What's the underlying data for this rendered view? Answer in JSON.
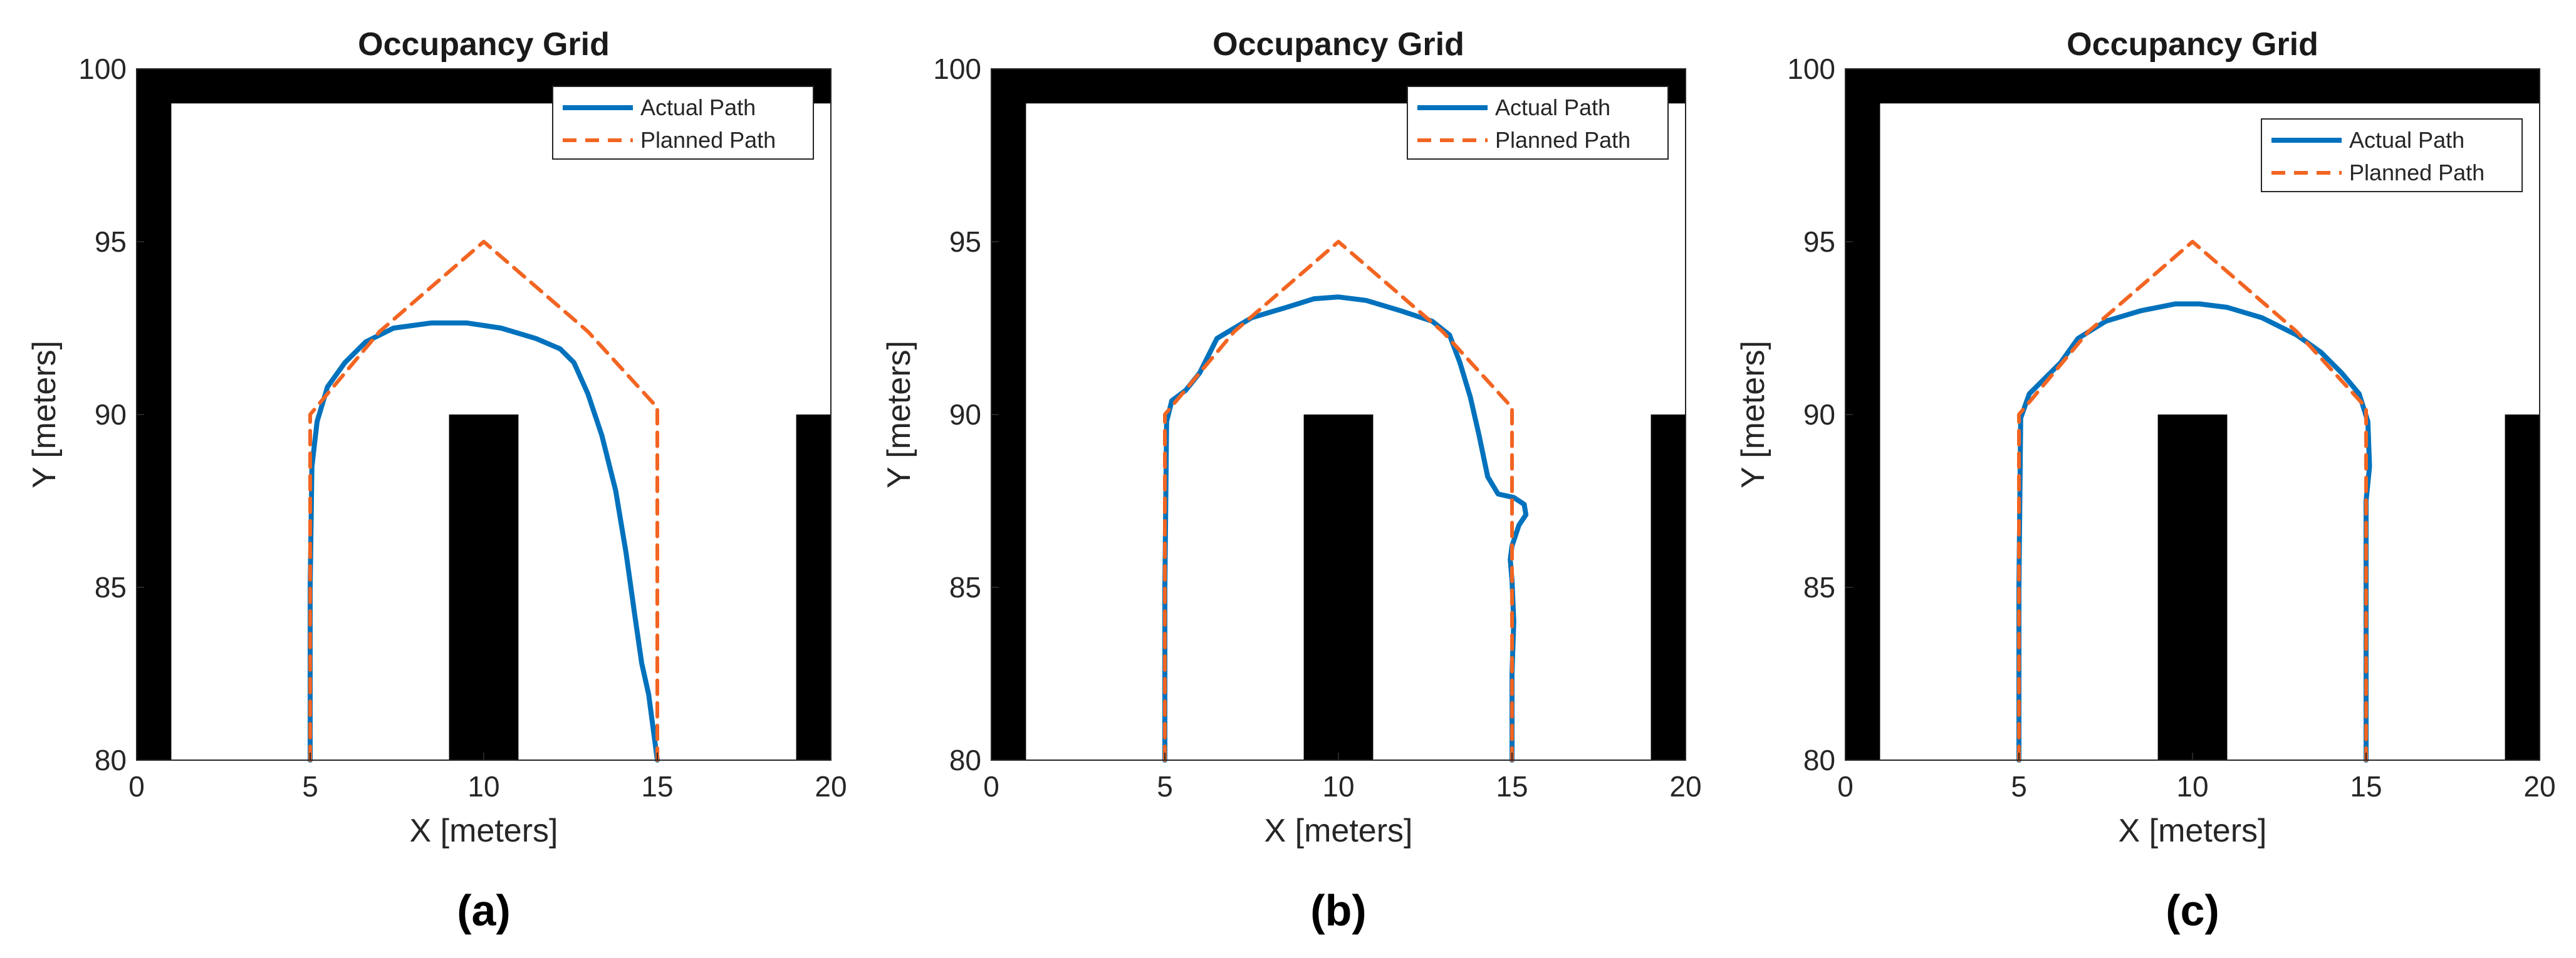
{
  "chart_data": [
    {
      "type": "line",
      "title": "Occupancy Grid",
      "xlabel": "X [meters]",
      "ylabel": "Y [meters]",
      "xlim": [
        0,
        20
      ],
      "ylim": [
        80,
        100
      ],
      "xticks": [
        "0",
        "5",
        "10",
        "15",
        "20"
      ],
      "yticks": [
        "80",
        "85",
        "90",
        "95",
        "100"
      ],
      "legend_position": "top-right",
      "caption": "(a)",
      "obstacles": [
        {
          "x0": 0,
          "x1": 20,
          "y0": 99,
          "y1": 100
        },
        {
          "x0": 0,
          "x1": 1,
          "y0": 80,
          "y1": 100
        },
        {
          "x0": 9,
          "x1": 11,
          "y0": 80,
          "y1": 90
        },
        {
          "x0": 19,
          "x1": 20,
          "y0": 80,
          "y1": 90
        }
      ],
      "series": [
        {
          "name": "Actual Path",
          "color": "#0072BD",
          "style": "solid",
          "x": [
            5,
            5,
            5.05,
            5.2,
            5.5,
            6,
            6.6,
            7.4,
            8.5,
            9.5,
            10.5,
            11.5,
            12.2,
            12.6,
            13.0,
            13.4,
            13.8,
            14.1,
            14.35,
            14.55,
            14.75,
            15.0
          ],
          "y": [
            80,
            85,
            88.5,
            89.8,
            90.8,
            91.5,
            92.1,
            92.5,
            92.65,
            92.65,
            92.5,
            92.2,
            91.9,
            91.5,
            90.6,
            89.4,
            87.8,
            86.0,
            84.2,
            82.8,
            81.9,
            80
          ]
        },
        {
          "name": "Planned Path",
          "color": "#F26522",
          "style": "dashed",
          "x": [
            5,
            5,
            7,
            10,
            13,
            15,
            15
          ],
          "y": [
            80,
            90,
            92.4,
            95,
            92.4,
            90.2,
            80
          ]
        }
      ]
    },
    {
      "type": "line",
      "title": "Occupancy Grid",
      "xlabel": "X [meters]",
      "ylabel": "Y [meters]",
      "xlim": [
        0,
        20
      ],
      "ylim": [
        80,
        100
      ],
      "xticks": [
        "0",
        "5",
        "10",
        "15",
        "20"
      ],
      "yticks": [
        "80",
        "85",
        "90",
        "95",
        "100"
      ],
      "legend_position": "top-right",
      "caption": "(b)",
      "obstacles": [
        {
          "x0": 0,
          "x1": 20,
          "y0": 99,
          "y1": 100
        },
        {
          "x0": 0,
          "x1": 1,
          "y0": 80,
          "y1": 100
        },
        {
          "x0": 9,
          "x1": 11,
          "y0": 80,
          "y1": 90
        },
        {
          "x0": 19,
          "x1": 20,
          "y0": 80,
          "y1": 90
        }
      ],
      "series": [
        {
          "name": "Actual Path",
          "color": "#0072BD",
          "style": "solid",
          "x": [
            5,
            5,
            5.05,
            5.2,
            5.6,
            6,
            6.5,
            7.5,
            8.5,
            9.3,
            10,
            10.8,
            11.8,
            12.7,
            13.2,
            13.5,
            13.8,
            14.05,
            14.3,
            14.6,
            15.05,
            15.35,
            15.4,
            15.2,
            15.0,
            14.95,
            15.0,
            15.05,
            15.0,
            15.0
          ],
          "y": [
            80,
            85,
            89.8,
            90.4,
            90.7,
            91.2,
            92.2,
            92.8,
            93.1,
            93.35,
            93.4,
            93.3,
            93.0,
            92.7,
            92.3,
            91.5,
            90.5,
            89.4,
            88.2,
            87.7,
            87.6,
            87.4,
            87.1,
            86.8,
            86.2,
            85.8,
            85.2,
            84.0,
            82.5,
            80
          ]
        },
        {
          "name": "Planned Path",
          "color": "#F26522",
          "style": "dashed",
          "x": [
            5,
            5,
            7,
            10,
            13,
            15,
            15
          ],
          "y": [
            80,
            90,
            92.4,
            95,
            92.4,
            90.2,
            80
          ]
        }
      ]
    },
    {
      "type": "line",
      "title": "Occupancy Grid",
      "xlabel": "X [meters]",
      "ylabel": "Y [meters]",
      "xlim": [
        0,
        20
      ],
      "ylim": [
        80,
        100
      ],
      "xticks": [
        "0",
        "5",
        "10",
        "15",
        "20"
      ],
      "yticks": [
        "80",
        "85",
        "90",
        "95",
        "100"
      ],
      "legend_position": "top-right",
      "caption": "(c)",
      "obstacles": [
        {
          "x0": 0,
          "x1": 20,
          "y0": 99,
          "y1": 100
        },
        {
          "x0": 0,
          "x1": 1,
          "y0": 80,
          "y1": 100
        },
        {
          "x0": 9,
          "x1": 11,
          "y0": 80,
          "y1": 90
        },
        {
          "x0": 19,
          "x1": 20,
          "y0": 80,
          "y1": 90
        }
      ],
      "series": [
        {
          "name": "Actual Path",
          "color": "#0072BD",
          "style": "solid",
          "x": [
            5,
            5,
            5.05,
            5.3,
            5.7,
            6.2,
            6.7,
            7.5,
            8.5,
            9.5,
            10.2,
            11,
            12,
            13,
            13.7,
            14.3,
            14.8,
            15.05,
            15.1,
            15.0,
            15.0,
            15.0
          ],
          "y": [
            80,
            85,
            89.9,
            90.6,
            91.0,
            91.5,
            92.2,
            92.7,
            93.0,
            93.2,
            93.2,
            93.1,
            92.8,
            92.3,
            91.8,
            91.2,
            90.6,
            89.8,
            88.5,
            87.5,
            85.0,
            80
          ]
        },
        {
          "name": "Planned Path",
          "color": "#F26522",
          "style": "dashed",
          "x": [
            5,
            5,
            7,
            10,
            13,
            15,
            15
          ],
          "y": [
            80,
            90,
            92.4,
            95,
            92.4,
            90.2,
            80
          ]
        }
      ]
    }
  ]
}
